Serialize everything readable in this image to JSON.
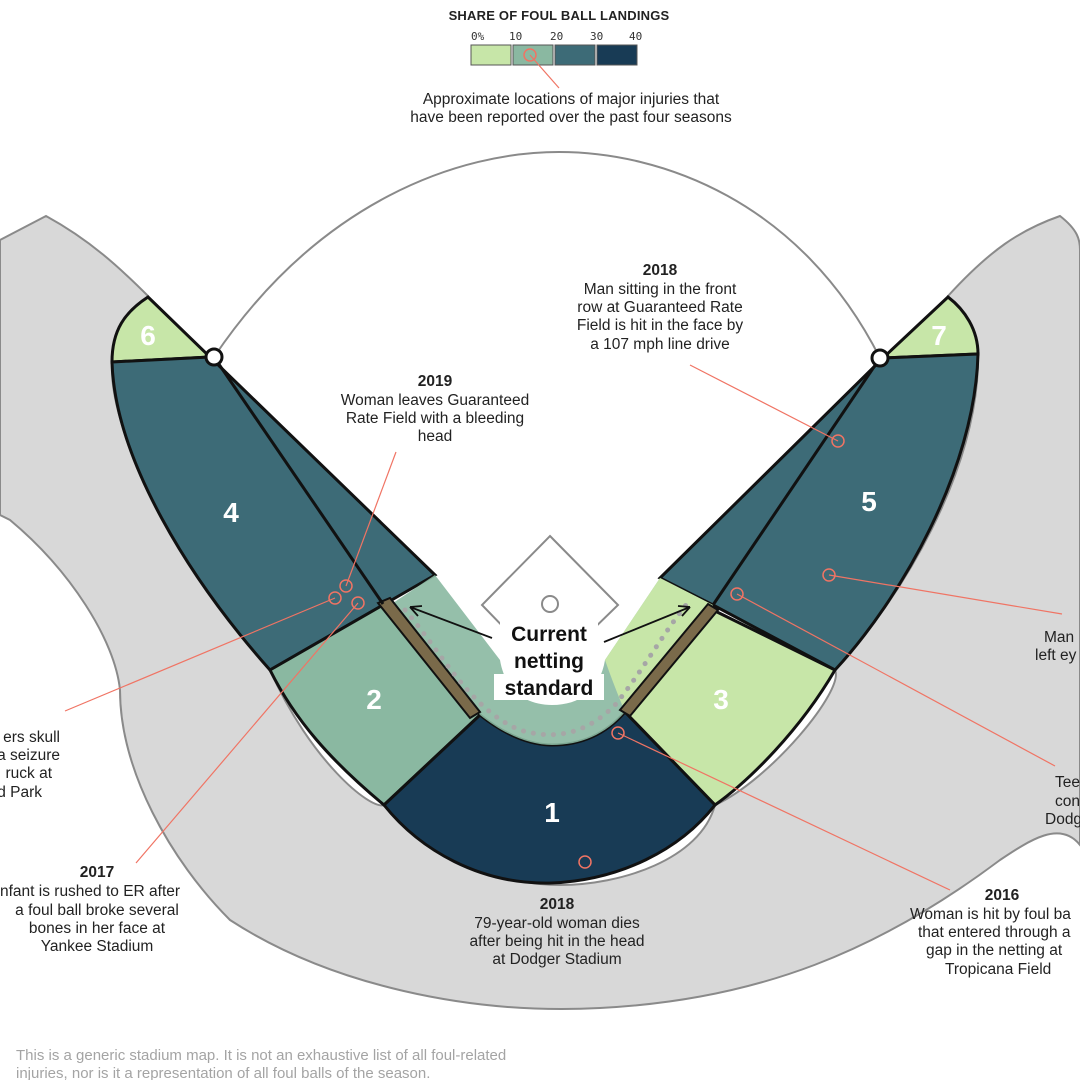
{
  "legend": {
    "title": "SHARE OF FOUL BALL LANDINGS",
    "ticks": [
      "0%",
      "10",
      "20",
      "30",
      "40"
    ],
    "bins": [
      {
        "min": 0,
        "max": 10,
        "color": "#c7e6a8"
      },
      {
        "min": 10,
        "max": 20,
        "color": "#8ab8a1"
      },
      {
        "min": 20,
        "max": 30,
        "color": "#3d6b77"
      },
      {
        "min": 30,
        "max": 40,
        "color": "#183b55"
      }
    ],
    "injury_note": [
      "Approximate locations of major injuries that",
      "have been reported over the past four seasons"
    ]
  },
  "sections": [
    {
      "id": "1",
      "color": "#183b55"
    },
    {
      "id": "2",
      "color": "#8ab8a1"
    },
    {
      "id": "3",
      "color": "#c7e6a8"
    },
    {
      "id": "4",
      "color": "#3d6b77"
    },
    {
      "id": "5",
      "color": "#3d6b77"
    },
    {
      "id": "6",
      "color": "#c7e6a8"
    },
    {
      "id": "7",
      "color": "#c7e6a8"
    }
  ],
  "netting_label": [
    "Current",
    "netting",
    "standard"
  ],
  "annotations": {
    "a2018_guaranteed": {
      "year": "2018",
      "lines": [
        "Man sitting in the front",
        "row at Guaranteed Rate",
        "Field is hit in the face by",
        "a 107 mph line drive"
      ]
    },
    "a2019": {
      "year": "2019",
      "lines": [
        "Woman leaves Guaranteed",
        "Rate Field with a bleeding",
        "head"
      ]
    },
    "a_skull": {
      "lines": [
        "ers skull",
        "a seizure",
        "ruck at",
        "d Park"
      ]
    },
    "a2017": {
      "year": "2017",
      "lines": [
        "nfant is rushed to ER after",
        "a foul ball broke several",
        "bones in her face at",
        "Yankee Stadium"
      ]
    },
    "a2018_dodger": {
      "year": "2018",
      "lines": [
        "79-year-old woman dies",
        "after being hit in the head",
        "at Dodger Stadium"
      ]
    },
    "a2016": {
      "year": "2016",
      "lines": [
        "Woman is hit by foul ba",
        "that entered through a",
        "gap in the netting at",
        "Tropicana Field"
      ]
    },
    "a_eye": {
      "lines": [
        "Man",
        "left ey"
      ]
    },
    "a_teen": {
      "lines": [
        "Tee",
        "con",
        "Dodg"
      ]
    }
  },
  "footnote": [
    "This is a generic stadium map. It is not an exhaustive list of all foul-related",
    "injuries, nor is it a representation of all foul balls of the season."
  ],
  "colors": {
    "concourse": "#d8d8d8",
    "outline": "#8a8a8a",
    "netting": "#7a6a4a",
    "leader": "#f07464"
  }
}
